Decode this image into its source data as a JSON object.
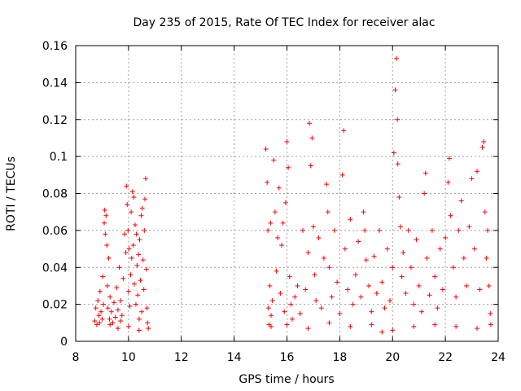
{
  "chart_data": {
    "type": "scatter",
    "title": "Day 235 of 2015, Rate Of TEC Index for receiver alac",
    "xlabel": "GPS time / hours",
    "ylabel": "ROTI / TECUs",
    "xlim": [
      8,
      24
    ],
    "ylim": [
      0,
      0.16
    ],
    "xticks": [
      8,
      10,
      12,
      14,
      16,
      18,
      20,
      22,
      24
    ],
    "xtick_labels": [
      "8",
      "10",
      "12",
      "14",
      "16",
      "18",
      "20",
      "22",
      "24"
    ],
    "yticks": [
      0,
      0.02,
      0.04,
      0.06,
      0.08,
      0.1,
      0.12,
      0.14,
      0.16
    ],
    "ytick_labels": [
      "0",
      "0.02",
      "0.04",
      "0.06",
      "0.08",
      "0.1",
      "0.12",
      "0.14",
      "0.16"
    ],
    "grid": true,
    "marker": "plus",
    "series_color": "#ff0000",
    "series": [
      {
        "name": "",
        "points": [
          [
            8.72,
            0.011
          ],
          [
            8.76,
            0.018
          ],
          [
            8.8,
            0.009
          ],
          [
            8.84,
            0.022
          ],
          [
            8.88,
            0.014
          ],
          [
            8.92,
            0.027
          ],
          [
            8.96,
            0.016
          ],
          [
            9.0,
            0.012
          ],
          [
            9.02,
            0.035
          ],
          [
            9.05,
            0.02
          ],
          [
            9.08,
            0.064
          ],
          [
            9.1,
            0.071
          ],
          [
            9.12,
            0.058
          ],
          [
            9.15,
            0.068
          ],
          [
            9.18,
            0.052
          ],
          [
            9.2,
            0.03
          ],
          [
            9.22,
            0.018
          ],
          [
            9.25,
            0.045
          ],
          [
            9.28,
            0.012
          ],
          [
            9.3,
            0.024
          ],
          [
            9.35,
            0.016
          ],
          [
            9.4,
            0.01
          ],
          [
            9.45,
            0.021
          ],
          [
            9.5,
            0.013
          ],
          [
            9.55,
            0.029
          ],
          [
            9.6,
            0.017
          ],
          [
            9.65,
            0.04
          ],
          [
            9.7,
            0.022
          ],
          [
            9.75,
            0.014
          ],
          [
            9.8,
            0.034
          ],
          [
            9.85,
            0.058
          ],
          [
            9.9,
            0.048
          ],
          [
            9.92,
            0.084
          ],
          [
            9.95,
            0.074
          ],
          [
            9.98,
            0.06
          ],
          [
            10.0,
            0.027
          ],
          [
            10.02,
            0.05
          ],
          [
            10.05,
            0.019
          ],
          [
            10.08,
            0.036
          ],
          [
            10.1,
            0.07
          ],
          [
            10.12,
            0.045
          ],
          [
            10.15,
            0.081
          ],
          [
            10.18,
            0.052
          ],
          [
            10.2,
            0.078
          ],
          [
            10.22,
            0.031
          ],
          [
            10.25,
            0.063
          ],
          [
            10.28,
            0.02
          ],
          [
            10.3,
            0.058
          ],
          [
            10.32,
            0.041
          ],
          [
            10.35,
            0.025
          ],
          [
            10.38,
            0.047
          ],
          [
            10.4,
            0.012
          ],
          [
            10.42,
            0.055
          ],
          [
            10.45,
            0.033
          ],
          [
            10.48,
            0.068
          ],
          [
            10.5,
            0.016
          ],
          [
            10.52,
            0.072
          ],
          [
            10.55,
            0.044
          ],
          [
            10.58,
            0.028
          ],
          [
            10.6,
            0.06
          ],
          [
            10.62,
            0.077
          ],
          [
            10.65,
            0.088
          ],
          [
            10.68,
            0.039
          ],
          [
            10.7,
            0.018
          ],
          [
            10.72,
            0.01
          ],
          [
            10.75,
            0.007
          ],
          [
            9.3,
            0.009
          ],
          [
            9.6,
            0.007
          ],
          [
            10.0,
            0.008
          ],
          [
            10.4,
            0.006
          ],
          [
            8.9,
            0.01
          ],
          [
            9.7,
            0.011
          ],
          [
            15.2,
            0.104
          ],
          [
            15.25,
            0.086
          ],
          [
            15.28,
            0.06
          ],
          [
            15.3,
            0.018
          ],
          [
            15.32,
            0.009
          ],
          [
            15.35,
            0.03
          ],
          [
            15.38,
            0.064
          ],
          [
            15.4,
            0.014
          ],
          [
            15.45,
            0.022
          ],
          [
            15.5,
            0.098
          ],
          [
            15.55,
            0.07
          ],
          [
            15.6,
            0.038
          ],
          [
            15.65,
            0.056
          ],
          [
            15.7,
            0.083
          ],
          [
            15.75,
            0.026
          ],
          [
            15.8,
            0.052
          ],
          [
            15.85,
            0.064
          ],
          [
            15.9,
            0.016
          ],
          [
            15.95,
            0.075
          ],
          [
            16.0,
            0.108
          ],
          [
            16.05,
            0.094
          ],
          [
            16.1,
            0.035
          ],
          [
            16.15,
            0.02
          ],
          [
            16.2,
            0.012
          ],
          [
            16.3,
            0.024
          ],
          [
            16.4,
            0.03
          ],
          [
            16.5,
            0.015
          ],
          [
            16.6,
            0.06
          ],
          [
            16.7,
            0.028
          ],
          [
            16.8,
            0.048
          ],
          [
            16.85,
            0.118
          ],
          [
            16.9,
            0.095
          ],
          [
            16.95,
            0.11
          ],
          [
            17.0,
            0.062
          ],
          [
            17.05,
            0.036
          ],
          [
            17.1,
            0.022
          ],
          [
            17.2,
            0.056
          ],
          [
            17.3,
            0.018
          ],
          [
            17.4,
            0.045
          ],
          [
            17.5,
            0.085
          ],
          [
            17.55,
            0.07
          ],
          [
            17.6,
            0.04
          ],
          [
            17.7,
            0.024
          ],
          [
            17.8,
            0.06
          ],
          [
            17.9,
            0.032
          ],
          [
            18.0,
            0.015
          ],
          [
            18.1,
            0.09
          ],
          [
            18.15,
            0.114
          ],
          [
            18.2,
            0.05
          ],
          [
            18.3,
            0.028
          ],
          [
            18.4,
            0.066
          ],
          [
            18.5,
            0.02
          ],
          [
            18.6,
            0.036
          ],
          [
            18.7,
            0.054
          ],
          [
            18.8,
            0.024
          ],
          [
            18.9,
            0.07
          ],
          [
            18.95,
            0.06
          ],
          [
            19.0,
            0.044
          ],
          [
            19.1,
            0.03
          ],
          [
            19.2,
            0.016
          ],
          [
            19.3,
            0.046
          ],
          [
            19.4,
            0.026
          ],
          [
            19.5,
            0.06
          ],
          [
            19.6,
            0.032
          ],
          [
            19.7,
            0.018
          ],
          [
            19.8,
            0.05
          ],
          [
            19.9,
            0.022
          ],
          [
            20.0,
            0.04
          ],
          [
            20.05,
            0.102
          ],
          [
            20.1,
            0.136
          ],
          [
            20.15,
            0.153
          ],
          [
            20.18,
            0.12
          ],
          [
            20.2,
            0.096
          ],
          [
            20.25,
            0.078
          ],
          [
            20.3,
            0.062
          ],
          [
            20.35,
            0.035
          ],
          [
            20.4,
            0.048
          ],
          [
            20.5,
            0.026
          ],
          [
            20.6,
            0.06
          ],
          [
            20.7,
            0.04
          ],
          [
            20.8,
            0.02
          ],
          [
            20.9,
            0.055
          ],
          [
            21.0,
            0.03
          ],
          [
            21.1,
            0.016
          ],
          [
            21.2,
            0.08
          ],
          [
            21.25,
            0.091
          ],
          [
            21.3,
            0.045
          ],
          [
            21.4,
            0.025
          ],
          [
            21.5,
            0.06
          ],
          [
            21.6,
            0.035
          ],
          [
            21.7,
            0.018
          ],
          [
            21.8,
            0.05
          ],
          [
            21.9,
            0.028
          ],
          [
            22.0,
            0.056
          ],
          [
            22.1,
            0.086
          ],
          [
            22.15,
            0.099
          ],
          [
            22.2,
            0.068
          ],
          [
            22.3,
            0.04
          ],
          [
            22.4,
            0.024
          ],
          [
            22.5,
            0.06
          ],
          [
            22.6,
            0.076
          ],
          [
            22.7,
            0.045
          ],
          [
            22.8,
            0.03
          ],
          [
            22.9,
            0.062
          ],
          [
            23.0,
            0.088
          ],
          [
            23.1,
            0.05
          ],
          [
            23.2,
            0.092
          ],
          [
            23.3,
            0.028
          ],
          [
            23.4,
            0.105
          ],
          [
            23.45,
            0.108
          ],
          [
            23.5,
            0.07
          ],
          [
            23.55,
            0.045
          ],
          [
            23.6,
            0.06
          ],
          [
            23.65,
            0.03
          ],
          [
            23.7,
            0.015
          ],
          [
            23.72,
            0.009
          ],
          [
            15.4,
            0.008
          ],
          [
            16.0,
            0.009
          ],
          [
            16.8,
            0.007
          ],
          [
            17.6,
            0.01
          ],
          [
            18.4,
            0.008
          ],
          [
            19.2,
            0.009
          ],
          [
            20.0,
            0.006
          ],
          [
            20.8,
            0.008
          ],
          [
            21.6,
            0.009
          ],
          [
            22.4,
            0.008
          ],
          [
            23.2,
            0.007
          ],
          [
            19.6,
            0.005
          ]
        ]
      }
    ]
  }
}
